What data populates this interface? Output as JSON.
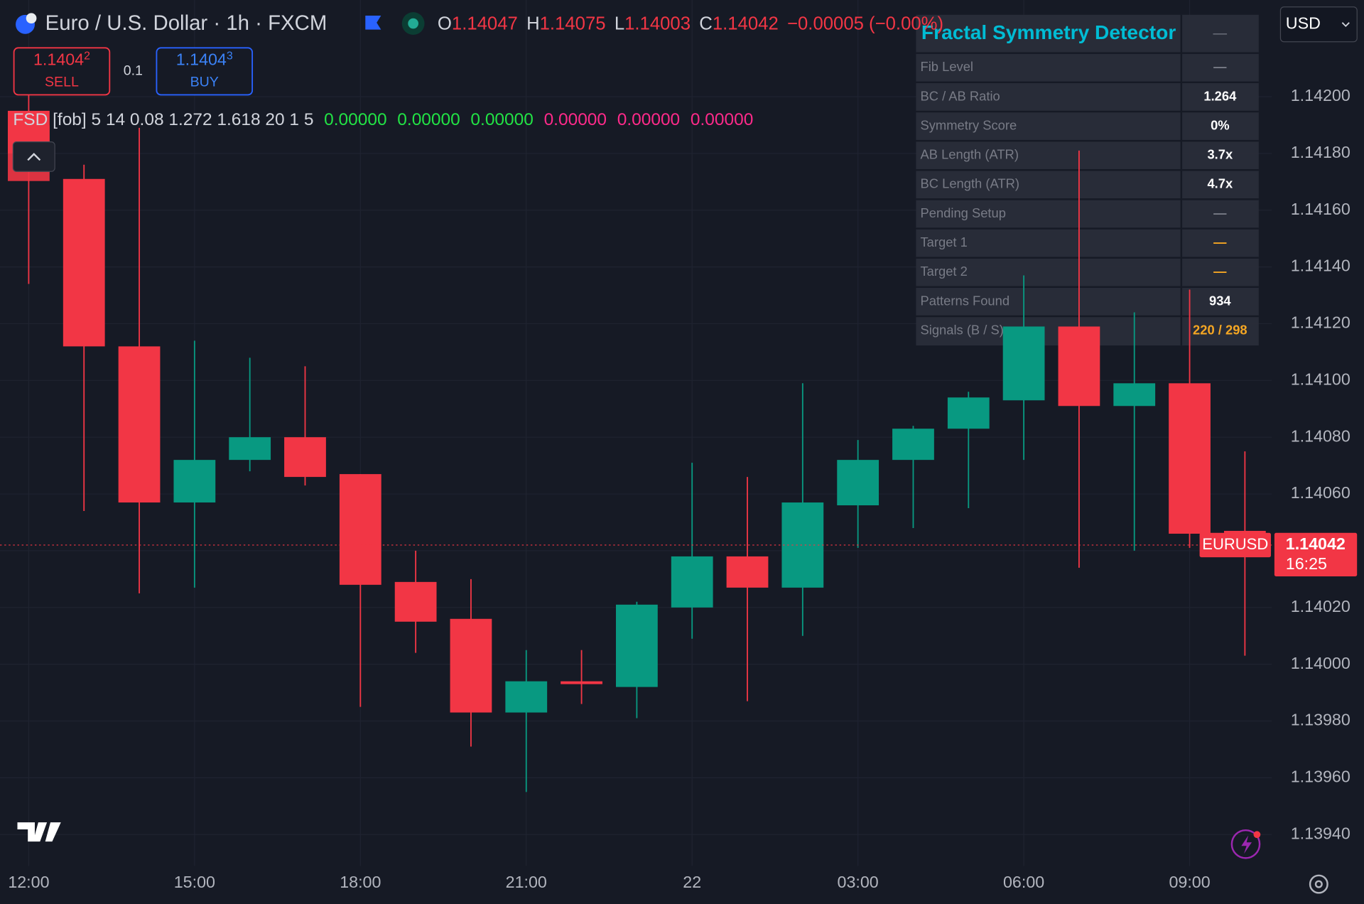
{
  "header": {
    "symbol": "Euro / U.S. Dollar · 1h · FXCM",
    "ohlc": [
      {
        "key": "O",
        "value": "1.14047"
      },
      {
        "key": "H",
        "value": "1.14075"
      },
      {
        "key": "L",
        "value": "1.14003"
      },
      {
        "key": "C",
        "value": "1.14042"
      }
    ],
    "change": "−0.00005 (−0.00%)"
  },
  "trade": {
    "sell": {
      "price": "1.1404",
      "pip": "2",
      "label": "SELL"
    },
    "size": "0.1",
    "buy": {
      "price": "1.1404",
      "pip": "3",
      "label": "BUY"
    }
  },
  "currency": "USD",
  "indicator": {
    "label": "FSD [fob] 5 14 0.08 1.272 1.618 20 1 5",
    "values": [
      {
        "text": "0.00000",
        "color": "#22e345"
      },
      {
        "text": "0.00000",
        "color": "#22e345"
      },
      {
        "text": "0.00000",
        "color": "#22e345"
      },
      {
        "text": "0.00000",
        "color": "#ff2a8a"
      },
      {
        "text": "0.00000",
        "color": "#ff2a8a"
      },
      {
        "text": "0.00000",
        "color": "#ff2a8a"
      }
    ]
  },
  "panel": {
    "title": "Fractal Symmetry Detector",
    "title_value": "—",
    "rows": [
      {
        "label": "Fib Level",
        "value": "—",
        "color": "#787b86"
      },
      {
        "label": "BC / AB Ratio",
        "value": "1.264",
        "color": "#ffffff"
      },
      {
        "label": "Symmetry Score",
        "value": "0%",
        "color": "#ffffff"
      },
      {
        "label": "AB Length (ATR)",
        "value": "3.7x",
        "color": "#ffffff"
      },
      {
        "label": "BC Length (ATR)",
        "value": "4.7x",
        "color": "#ffffff"
      },
      {
        "label": "Pending Setup",
        "value": "—",
        "color": "#787b86"
      },
      {
        "label": "Target 1",
        "value": "—",
        "color": "#f5a623"
      },
      {
        "label": "Target 2",
        "value": "—",
        "color": "#f5a623"
      },
      {
        "label": "Patterns Found",
        "value": "934",
        "color": "#ffffff"
      },
      {
        "label": "Signals (B / S)",
        "value": "220 / 298",
        "color": "#f5a623"
      }
    ]
  },
  "chart_data": {
    "type": "candlestick",
    "categories": [
      "12:00",
      null,
      null,
      "15:00",
      null,
      null,
      "18:00",
      null,
      null,
      "21:00",
      null,
      null,
      "22",
      null,
      null,
      "03:00",
      null,
      null,
      "06:00",
      null,
      null,
      "09:00",
      null
    ],
    "open": [
      1.14195,
      1.14171,
      1.14112,
      1.14057,
      1.14072,
      1.1408,
      1.14067,
      1.14029,
      1.14016,
      1.13983,
      1.13994,
      1.13992,
      1.1402,
      1.14038,
      1.14027,
      1.14056,
      1.14072,
      1.14083,
      1.14093,
      1.14119,
      1.14091,
      1.14099,
      1.14047
    ],
    "high": [
      1.14205,
      1.14176,
      1.14189,
      1.14114,
      1.14108,
      1.14105,
      1.14067,
      1.1404,
      1.1403,
      1.14005,
      1.14005,
      1.14022,
      1.14071,
      1.14066,
      1.14099,
      1.14079,
      1.14084,
      1.14096,
      1.14137,
      1.14181,
      1.14124,
      1.14132,
      1.14075
    ],
    "low": [
      1.14134,
      1.14054,
      1.14025,
      1.14027,
      1.14068,
      1.14063,
      1.13985,
      1.14004,
      1.13971,
      1.13955,
      1.13986,
      1.13981,
      1.14009,
      1.13987,
      1.1401,
      1.14041,
      1.14048,
      1.14055,
      1.14072,
      1.14034,
      1.1404,
      1.14041,
      1.14003
    ],
    "close": [
      1.1418,
      1.14112,
      1.14057,
      1.14072,
      1.1408,
      1.14066,
      1.14028,
      1.14015,
      1.13983,
      1.13994,
      1.13993,
      1.14021,
      1.14038,
      1.14027,
      1.14057,
      1.14072,
      1.14083,
      1.14094,
      1.14119,
      1.14091,
      1.14099,
      1.14046,
      1.14042
    ],
    "up_color": "#089981",
    "down_color": "#f23645",
    "ylim": [
      1.1393,
      1.1423
    ],
    "yticks": [
      {
        "value": 1.142,
        "label": "1.14200"
      },
      {
        "value": 1.1418,
        "label": "1.14180"
      },
      {
        "value": 1.1416,
        "label": "1.14160"
      },
      {
        "value": 1.1414,
        "label": "1.14140"
      },
      {
        "value": 1.1412,
        "label": "1.14120"
      },
      {
        "value": 1.141,
        "label": "1.14100"
      },
      {
        "value": 1.1408,
        "label": "1.14080"
      },
      {
        "value": 1.1406,
        "label": "1.14060"
      },
      {
        "value": 1.1404,
        "label": "1.14040"
      },
      {
        "value": 1.1402,
        "label": "1.14020"
      },
      {
        "value": 1.14,
        "label": "1.14000"
      },
      {
        "value": 1.1398,
        "label": "1.13980"
      },
      {
        "value": 1.1396,
        "label": "1.13960"
      },
      {
        "value": 1.1394,
        "label": "1.13940"
      }
    ],
    "grid": true,
    "last_price": {
      "symbol": "EURUSD",
      "price": "1.14042",
      "countdown": "16:25"
    }
  }
}
